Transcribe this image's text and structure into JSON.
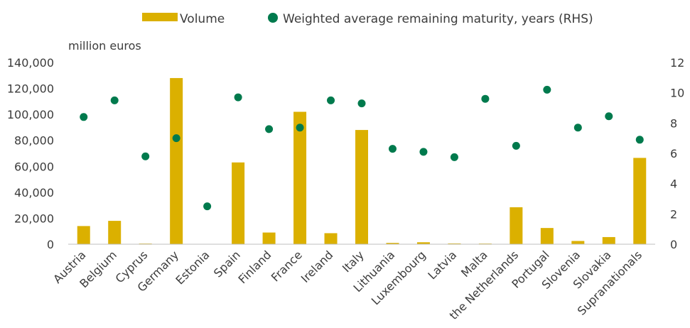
{
  "chart_data": {
    "type": "bar",
    "categories": [
      "Austria",
      "Belgium",
      "Cyprus",
      "Germany",
      "Estonia",
      "Spain",
      "Finland",
      "France",
      "Ireland",
      "Italy",
      "Lithuania",
      "Luxembourg",
      "Latvia",
      "Malta",
      "the Netherlands",
      "Portugal",
      "Slovenia",
      "Slovakia",
      "Supranationals"
    ],
    "series": [
      {
        "name": "Volume",
        "type": "bar",
        "axis": "left",
        "color": "#dbb000",
        "values": [
          14000,
          18000,
          500,
          128000,
          200,
          63000,
          9000,
          102000,
          8500,
          88000,
          1000,
          1500,
          600,
          500,
          28500,
          12500,
          2500,
          5500,
          66500
        ]
      },
      {
        "name": "Weighted average remaining maturity, years (RHS)",
        "type": "scatter",
        "axis": "right",
        "color": "#007a4d",
        "values": [
          8.4,
          9.5,
          5.8,
          7.0,
          2.5,
          9.7,
          7.6,
          7.7,
          9.5,
          9.3,
          6.3,
          6.1,
          5.75,
          9.6,
          6.5,
          10.2,
          7.7,
          8.45,
          6.9
        ]
      }
    ],
    "ylabel": "million euros",
    "ylim": [
      0,
      140000
    ],
    "yticks": [
      "0",
      "20,000",
      "40,000",
      "60,000",
      "80,000",
      "100,000",
      "120,000",
      "140,000"
    ],
    "y2lim": [
      0,
      12
    ],
    "y2ticks": [
      "0",
      "2",
      "4",
      "6",
      "8",
      "10",
      "12"
    ],
    "grid": false,
    "legend_position": "top-center"
  }
}
